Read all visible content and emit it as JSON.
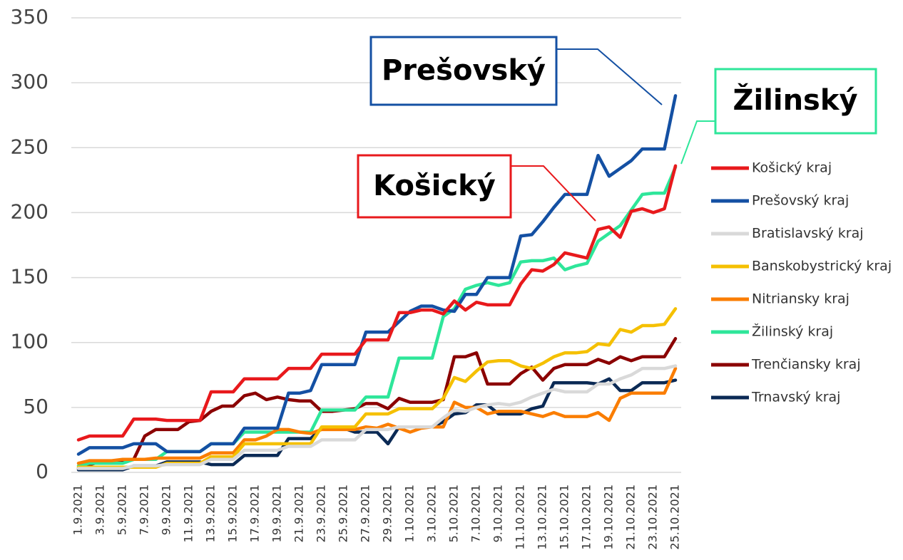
{
  "chart_data": {
    "type": "line",
    "categories": [
      "1.9.2021",
      null,
      "3.9.2021",
      null,
      "5.9.2021",
      null,
      "7.9.2021",
      null,
      "9.9.2021",
      null,
      "11.9.2021",
      null,
      "13.9.2021",
      null,
      "15.9.2021",
      null,
      "17.9.2021",
      null,
      "19.9.2021",
      null,
      "21.9.2021",
      null,
      "23.9.2021",
      null,
      "25.9.2021",
      null,
      "27.9.2021",
      null,
      "29.9.2021",
      null,
      "1.10.2021",
      null,
      "3.10.2021",
      null,
      "5.10.2021",
      null,
      "7.10.2021",
      null,
      "9.10.2021",
      null,
      "11.10.2021",
      null,
      "13.10.2021",
      null,
      "15.10.2021",
      null,
      "17.10.2021",
      null,
      "19.10.2021",
      null,
      "21.10.2021",
      null,
      "23.10.2021",
      null,
      "25.10.2021"
    ],
    "ylim": [
      0,
      350
    ],
    "yticks": [
      0,
      50,
      100,
      150,
      200,
      250,
      300,
      350
    ],
    "grid": true,
    "series": [
      {
        "name": "Košický kraj",
        "color": "#e8191c",
        "values": [
          25,
          28,
          28,
          28,
          28,
          41,
          41,
          41,
          40,
          40,
          40,
          40,
          62,
          62,
          62,
          72,
          72,
          72,
          72,
          80,
          80,
          80,
          91,
          91,
          91,
          91,
          102,
          102,
          102,
          123,
          123,
          125,
          125,
          122,
          132,
          125,
          131,
          129,
          129,
          129,
          145,
          156,
          155,
          160,
          169,
          167,
          165,
          187,
          189,
          181,
          201,
          203,
          200,
          203,
          236
        ]
      },
      {
        "name": "Prešovský kraj",
        "color": "#1450a3",
        "values": [
          14,
          19,
          19,
          19,
          19,
          22,
          22,
          22,
          16,
          16,
          16,
          16,
          22,
          22,
          22,
          34,
          34,
          34,
          34,
          61,
          61,
          63,
          83,
          83,
          83,
          83,
          108,
          108,
          108,
          116,
          124,
          128,
          128,
          125,
          124,
          137,
          137,
          150,
          150,
          150,
          182,
          183,
          193,
          204,
          214,
          214,
          214,
          244,
          228,
          234,
          240,
          249,
          249,
          249,
          290
        ]
      },
      {
        "name": "Bratislavský kraj",
        "color": "#d9d9d9",
        "values": [
          3,
          3,
          3,
          3,
          3,
          5,
          5,
          5,
          6,
          6,
          6,
          6,
          10,
          10,
          10,
          17,
          17,
          17,
          17,
          20,
          20,
          20,
          25,
          25,
          25,
          25,
          33,
          33,
          33,
          35,
          35,
          35,
          35,
          42,
          48,
          47,
          50,
          52,
          53,
          52,
          54,
          58,
          61,
          64,
          62,
          62,
          62,
          68,
          68,
          72,
          75,
          80,
          80,
          80,
          82
        ]
      },
      {
        "name": "Banskobystrický kraj",
        "color": "#f5c000",
        "values": [
          4,
          4,
          4,
          4,
          4,
          4,
          4,
          4,
          7,
          7,
          7,
          7,
          12,
          12,
          12,
          22,
          22,
          22,
          22,
          22,
          22,
          22,
          35,
          35,
          35,
          35,
          45,
          45,
          45,
          49,
          49,
          49,
          49,
          57,
          73,
          70,
          78,
          85,
          86,
          86,
          82,
          80,
          84,
          89,
          92,
          92,
          93,
          99,
          98,
          110,
          108,
          113,
          113,
          114,
          126
        ]
      },
      {
        "name": "Nitriansky kraj",
        "color": "#fa7d00",
        "values": [
          7,
          9,
          9,
          9,
          10,
          10,
          10,
          11,
          11,
          11,
          11,
          11,
          15,
          15,
          15,
          25,
          25,
          28,
          33,
          33,
          31,
          30,
          33,
          33,
          33,
          33,
          35,
          34,
          37,
          34,
          31,
          34,
          35,
          35,
          54,
          50,
          50,
          45,
          47,
          47,
          47,
          45,
          43,
          46,
          43,
          43,
          43,
          46,
          40,
          57,
          61,
          61,
          61,
          61,
          80
        ]
      },
      {
        "name": "Žilinský kraj",
        "color": "#2ee69a",
        "values": [
          5,
          7,
          7,
          7,
          7,
          10,
          10,
          10,
          16,
          16,
          16,
          16,
          22,
          22,
          22,
          31,
          31,
          31,
          31,
          31,
          31,
          31,
          48,
          48,
          48,
          48,
          58,
          58,
          58,
          88,
          88,
          88,
          88,
          120,
          126,
          141,
          144,
          146,
          144,
          146,
          162,
          163,
          163,
          165,
          156,
          159,
          161,
          178,
          184,
          190,
          202,
          214,
          215,
          215,
          235
        ]
      },
      {
        "name": "Trenčiansky kraj",
        "color": "#8b0000",
        "values": [
          3,
          6,
          8,
          8,
          8,
          10,
          28,
          33,
          33,
          33,
          39,
          40,
          47,
          51,
          51,
          59,
          61,
          56,
          58,
          56,
          55,
          55,
          47,
          47,
          48,
          49,
          53,
          53,
          49,
          57,
          54,
          54,
          54,
          56,
          89,
          89,
          92,
          68,
          68,
          68,
          76,
          81,
          71,
          80,
          83,
          83,
          83,
          87,
          84,
          89,
          86,
          89,
          89,
          89,
          103
        ]
      },
      {
        "name": "Trnavský kraj",
        "color": "#0b2a55",
        "values": [
          2,
          2,
          2,
          2,
          2,
          5,
          5,
          5,
          8,
          8,
          8,
          8,
          6,
          6,
          6,
          13,
          13,
          13,
          13,
          26,
          26,
          26,
          34,
          34,
          34,
          31,
          31,
          31,
          22,
          35,
          35,
          35,
          35,
          39,
          45,
          46,
          52,
          52,
          45,
          45,
          45,
          49,
          51,
          69,
          69,
          69,
          69,
          68,
          72,
          63,
          63,
          69,
          69,
          69,
          71
        ]
      }
    ],
    "annotations": [
      {
        "text": "Prešovský",
        "color": "#1450a3"
      },
      {
        "text": "Žilinský",
        "color": "#2ee69a"
      },
      {
        "text": "Košický",
        "color": "#e8191c"
      }
    ]
  }
}
